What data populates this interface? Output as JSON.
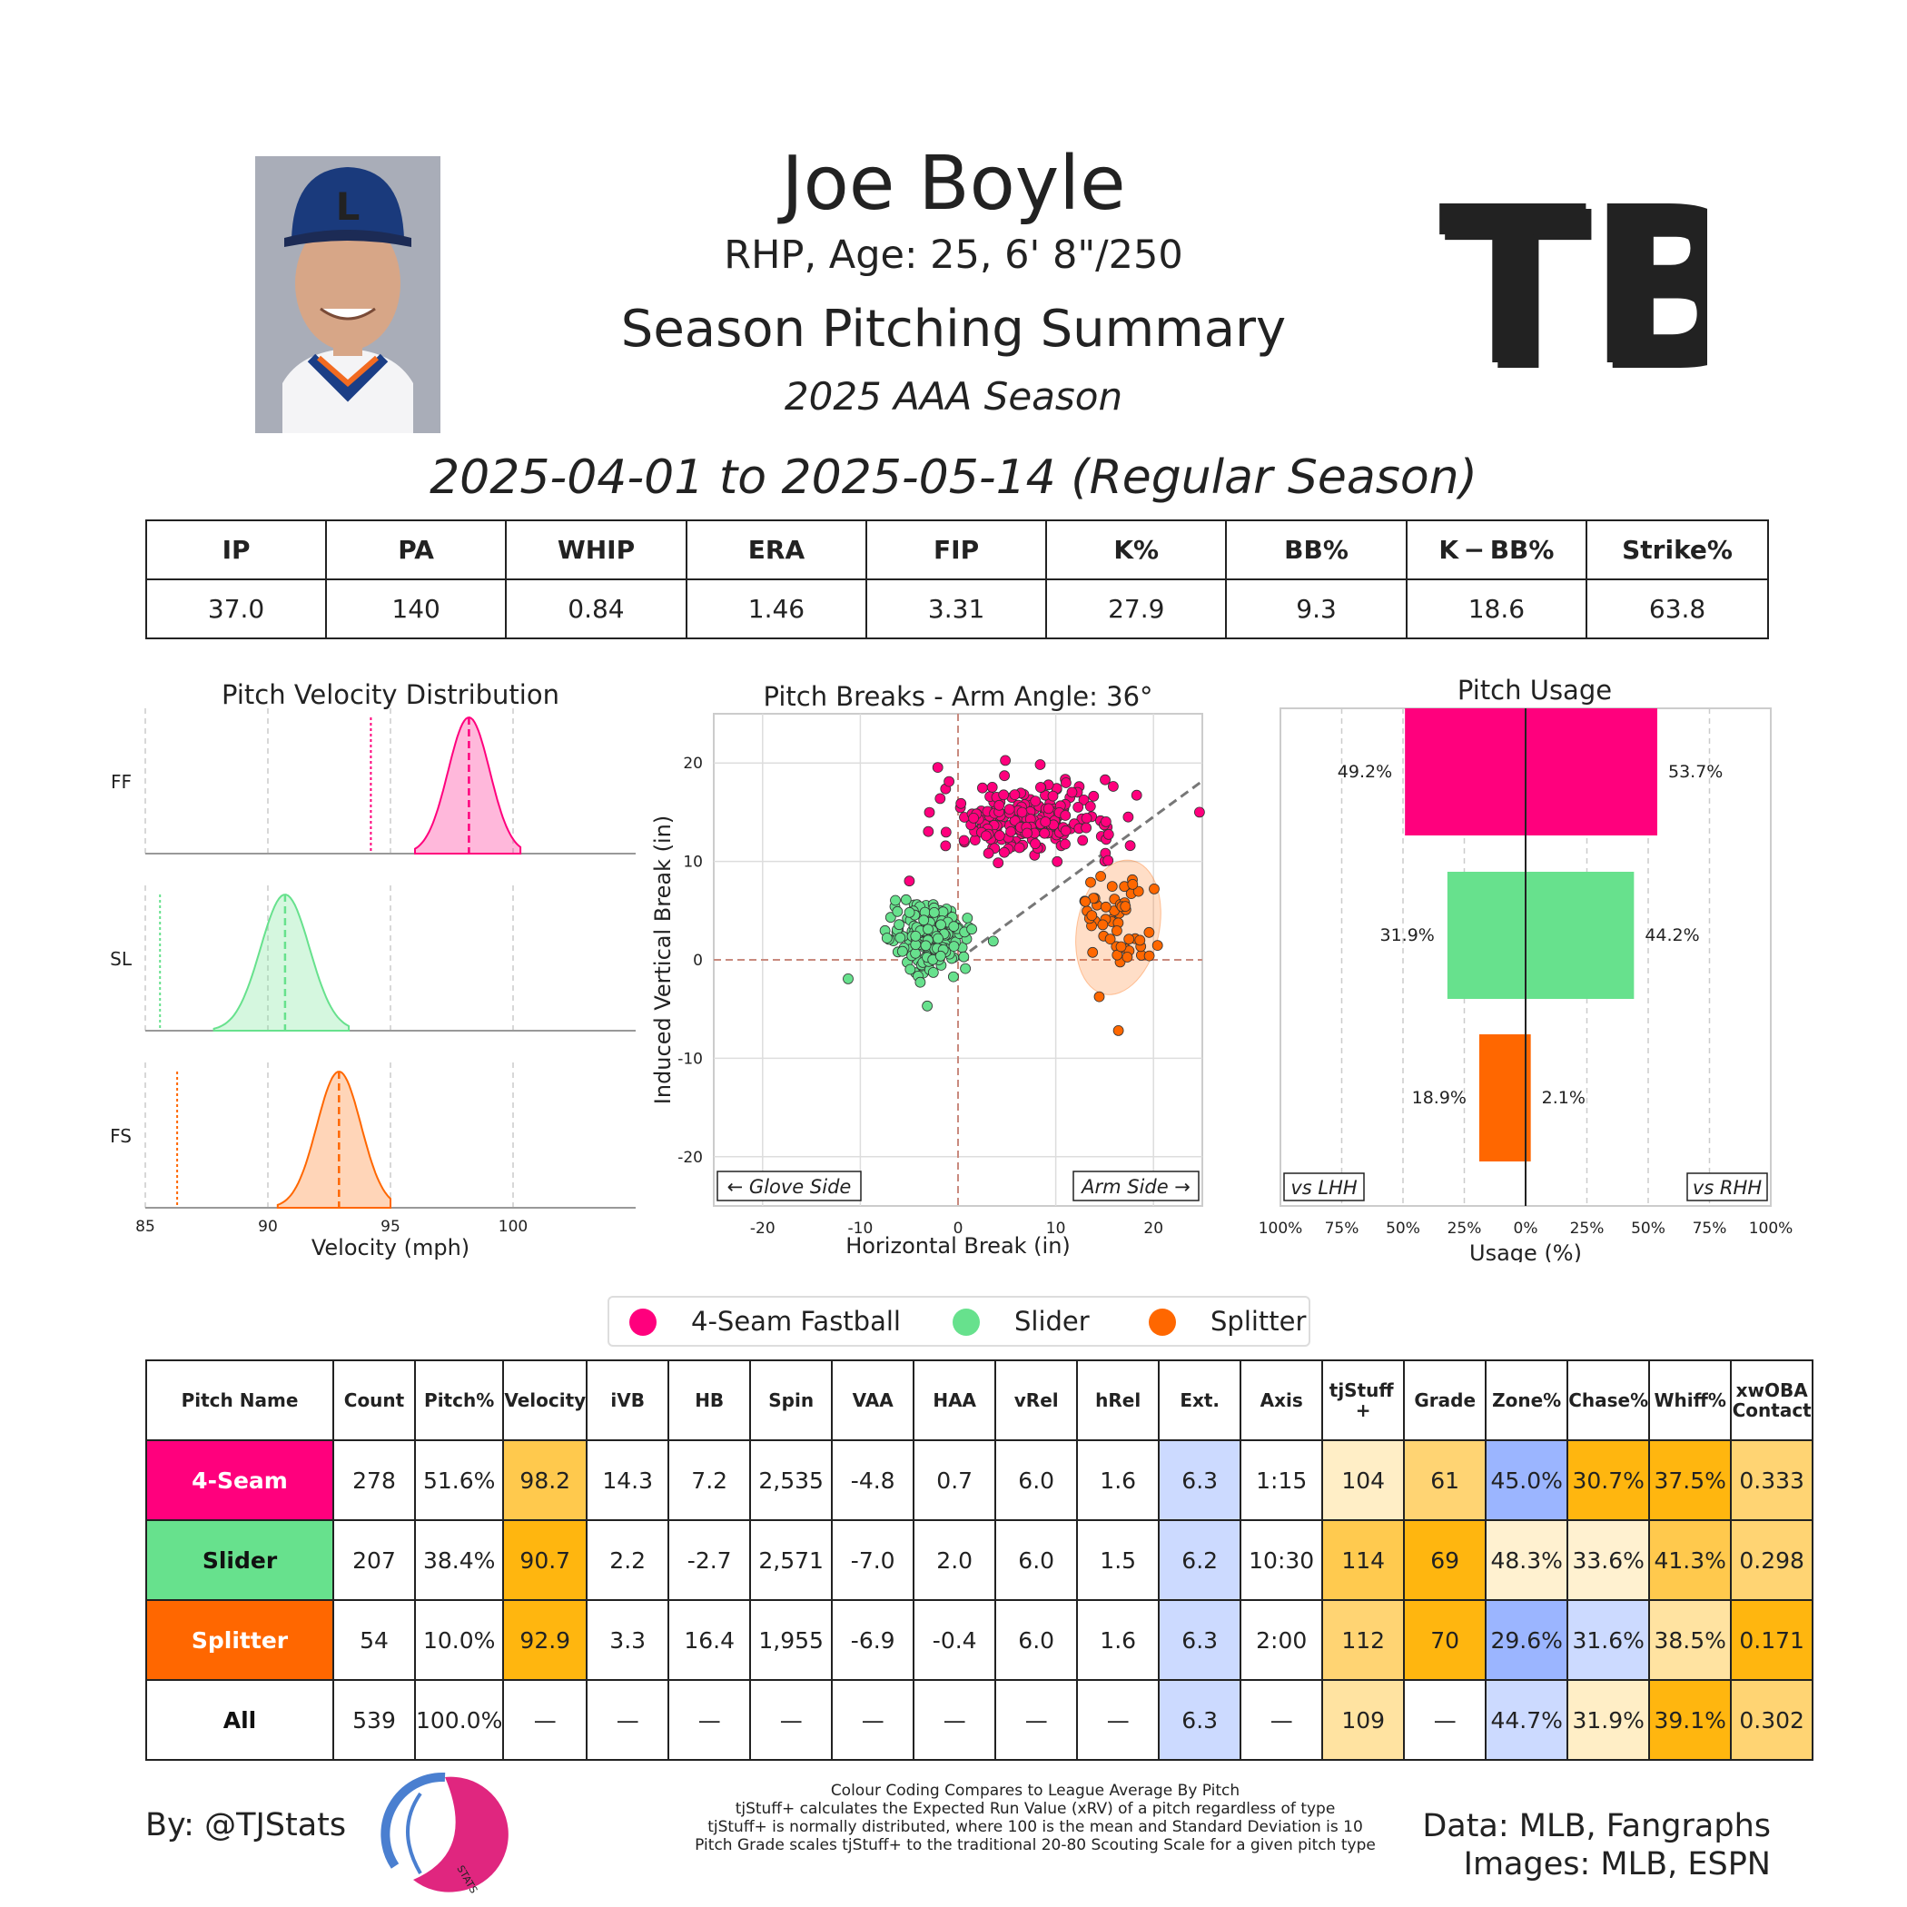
{
  "header": {
    "name": "Joe Boyle",
    "bio": "RHP, Age: 25, 6' 8\"/250",
    "title": "Season Pitching Summary",
    "season": "2025 AAA Season",
    "date_range": "2025-04-01 to 2025-05-14 (Regular Season)",
    "team_logo_text": "TB"
  },
  "colors": {
    "ff": "#ff007d",
    "sl": "#67e18d",
    "fs": "#ff6700"
  },
  "summary_stats": {
    "headers": [
      "IP",
      "PA",
      "WHIP",
      "ERA",
      "FIP",
      "K%",
      "BB%",
      "K − BB%",
      "Strike%"
    ],
    "values": [
      "37.0",
      "140",
      "0.84",
      "1.46",
      "3.31",
      "27.9",
      "9.3",
      "18.6",
      "63.8"
    ]
  },
  "chart_data": [
    {
      "type": "area",
      "title": "Pitch Velocity Distribution",
      "xlabel": "Velocity (mph)",
      "xlim": [
        85,
        105
      ],
      "xticks": [
        "85",
        "90",
        "95",
        "100"
      ],
      "series": [
        {
          "name": "FF",
          "mean": 98.2,
          "league_mean": 94.2,
          "min": 96.0,
          "max": 100.3,
          "sd": 0.85
        },
        {
          "name": "SL",
          "mean": 90.7,
          "league_mean": 85.6,
          "min": 87.8,
          "max": 93.3,
          "sd": 1.0
        },
        {
          "name": "FS",
          "mean": 92.9,
          "league_mean": 86.3,
          "min": 90.4,
          "max": 95.0,
          "sd": 0.9
        }
      ]
    },
    {
      "type": "scatter",
      "title": "Pitch Breaks - Arm Angle: 36°",
      "xlabel": "Horizontal Break (in)",
      "ylabel": "Induced Vertical Break (in)",
      "xlim": [
        -25,
        25
      ],
      "ylim": [
        -25,
        25
      ],
      "xticks": [
        "-20",
        "-10",
        "0",
        "10",
        "20"
      ],
      "yticks": [
        "20",
        "10",
        "0",
        "-10",
        "-20"
      ],
      "arm_angle_deg": 36,
      "glove_side_label": "← Glove Side",
      "arm_side_label": "Arm Side →",
      "series": [
        {
          "name": "4-Seam Fastball",
          "center": [
            7.2,
            14.3
          ],
          "spread": [
            4.5,
            1.8
          ],
          "count": 278
        },
        {
          "name": "Slider",
          "center": [
            -2.7,
            2.2
          ],
          "spread": [
            2.0,
            1.7
          ],
          "count": 207
        },
        {
          "name": "Splitter",
          "center": [
            16.4,
            3.3
          ],
          "spread": [
            2.0,
            3.3
          ],
          "count": 54
        }
      ]
    },
    {
      "type": "bar",
      "title": "Pitch Usage",
      "xlabel": "Usage (%)",
      "xticks": [
        "100%",
        "75%",
        "50%",
        "25%",
        "0%",
        "25%",
        "50%",
        "75%",
        "100%"
      ],
      "vs_lhh_label": "vs LHH",
      "vs_rhh_label": "vs RHH",
      "categories": [
        "4-Seam Fastball",
        "Slider",
        "Splitter"
      ],
      "series": [
        {
          "name": "vs LHH",
          "values": [
            49.2,
            31.9,
            18.9
          ],
          "labels": [
            "49.2%",
            "31.9%",
            "18.9%"
          ]
        },
        {
          "name": "vs RHH",
          "values": [
            53.7,
            44.2,
            2.1
          ],
          "labels": [
            "53.7%",
            "44.2%",
            "2.1%"
          ]
        }
      ]
    }
  ],
  "legend": [
    "4-Seam Fastball",
    "Slider",
    "Splitter"
  ],
  "pitch_table": {
    "headers": [
      "Pitch Name",
      "Count",
      "Pitch%",
      "Velocity",
      "iVB",
      "HB",
      "Spin",
      "VAA",
      "HAA",
      "vRel",
      "hRel",
      "Ext.",
      "Axis",
      "tjStuff +",
      "Grade",
      "Zone%",
      "Chase%",
      "Whiff%",
      "xwOBA Contact"
    ],
    "rows": [
      {
        "name": "4-Seam",
        "name_bg": "#ff007d",
        "name_color": "#ffffff",
        "cells": [
          "278",
          "51.6%",
          "98.2",
          "14.3",
          "7.2",
          "2,535",
          "-4.8",
          "0.7",
          "6.0",
          "1.6",
          "6.3",
          "1:15",
          "104",
          "61",
          "45.0%",
          "30.7%",
          "37.5%",
          "0.333"
        ],
        "bgs": [
          "#ffffff",
          "#ffffff",
          "#ffc94d",
          "#ffffff",
          "#ffffff",
          "#ffffff",
          "#ffffff",
          "#ffffff",
          "#ffffff",
          "#ffffff",
          "#ccdaff",
          "#ffffff",
          "#ffeec6",
          "#ffd473",
          "#9bb5ff",
          "#ffb60f",
          "#ffb60f",
          "#ffd473"
        ]
      },
      {
        "name": "Slider",
        "name_bg": "#67e18d",
        "name_color": "#111111",
        "cells": [
          "207",
          "38.4%",
          "90.7",
          "2.2",
          "-2.7",
          "2,571",
          "-7.0",
          "2.0",
          "6.0",
          "1.5",
          "6.2",
          "10:30",
          "114",
          "69",
          "48.3%",
          "33.6%",
          "41.3%",
          "0.298"
        ],
        "bgs": [
          "#ffffff",
          "#ffffff",
          "#ffb60f",
          "#ffffff",
          "#ffffff",
          "#ffffff",
          "#ffffff",
          "#ffffff",
          "#ffffff",
          "#ffffff",
          "#ccdaff",
          "#ffffff",
          "#ffca4f",
          "#ffb60f",
          "#fff1d0",
          "#fff1d0",
          "#ffc94d",
          "#ffd473"
        ]
      },
      {
        "name": "Splitter",
        "name_bg": "#ff6700",
        "name_color": "#ffffff",
        "cells": [
          "54",
          "10.0%",
          "92.9",
          "3.3",
          "16.4",
          "1,955",
          "-6.9",
          "-0.4",
          "6.0",
          "1.6",
          "6.3",
          "2:00",
          "112",
          "70",
          "29.6%",
          "31.6%",
          "38.5%",
          "0.171"
        ],
        "bgs": [
          "#ffffff",
          "#ffffff",
          "#ffb60f",
          "#ffffff",
          "#ffffff",
          "#ffffff",
          "#ffffff",
          "#ffffff",
          "#ffffff",
          "#ffffff",
          "#ccdaff",
          "#ffffff",
          "#ffd473",
          "#ffb60f",
          "#9bb5ff",
          "#ccdaff",
          "#ffe3a1",
          "#ffb60f"
        ]
      },
      {
        "name": "All",
        "name_bg": "#ffffff",
        "name_color": "#111111",
        "cells": [
          "539",
          "100.0%",
          "—",
          "—",
          "—",
          "—",
          "—",
          "—",
          "—",
          "—",
          "6.3",
          "—",
          "109",
          "—",
          "44.7%",
          "31.9%",
          "39.1%",
          "0.302"
        ],
        "bgs": [
          "#ffffff",
          "#ffffff",
          "#ffffff",
          "#ffffff",
          "#ffffff",
          "#ffffff",
          "#ffffff",
          "#ffffff",
          "#ffffff",
          "#ffffff",
          "#ccdaff",
          "#ffffff",
          "#ffe3a1",
          "#ffffff",
          "#ccdaff",
          "#ffeec6",
          "#ffb60f",
          "#ffd473"
        ]
      }
    ]
  },
  "footer": {
    "byline": "By: @TJStats",
    "notes": [
      "Colour Coding Compares to League Average By Pitch",
      "tjStuff+ calculates the Expected Run Value (xRV) of a pitch regardless of type",
      "tjStuff+ is normally distributed, where 100 is the mean and Standard Deviation is 10",
      "Pitch Grade scales tjStuff+ to the traditional 20-80 Scouting Scale for a given pitch type"
    ],
    "data_credit": "Data: MLB, Fangraphs",
    "image_credit": "Images: MLB, ESPN",
    "logo_text": "STATS"
  }
}
